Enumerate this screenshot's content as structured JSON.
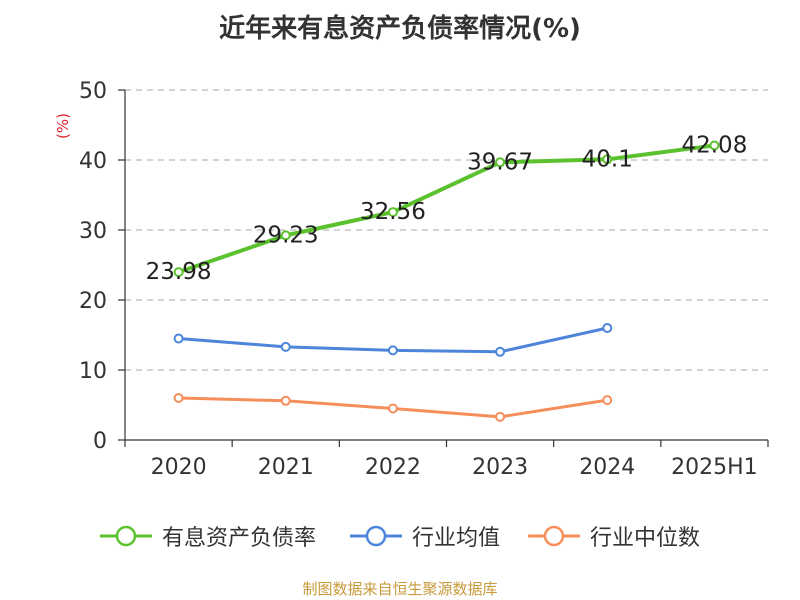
{
  "chart_data": {
    "type": "line",
    "title": "近年来有息资产负债率情况(%)",
    "ylabel": "(%)",
    "categories": [
      "2020",
      "2021",
      "2022",
      "2023",
      "2024",
      "2025H1"
    ],
    "ylim": [
      0,
      50
    ],
    "yticks": [
      "0",
      "10",
      "20",
      "30",
      "40",
      "50"
    ],
    "grid": true,
    "legend_position": "bottom",
    "series": [
      {
        "name": "有息资产负债率",
        "color": "#5cc12e",
        "values": [
          23.98,
          29.23,
          32.56,
          39.67,
          40.1,
          42.08
        ],
        "labels": [
          "23.98",
          "29.23",
          "32.56",
          "39.67",
          "40.1",
          "42.08"
        ]
      },
      {
        "name": "行业均值",
        "color": "#4d85db",
        "values": [
          14.5,
          13.3,
          12.8,
          12.6,
          16.0,
          null
        ]
      },
      {
        "name": "行业中位数",
        "color": "#f68e5c",
        "values": [
          6.0,
          5.6,
          4.5,
          3.3,
          5.7,
          null
        ]
      }
    ]
  },
  "source_note": "制图数据来自恒生聚源数据库"
}
